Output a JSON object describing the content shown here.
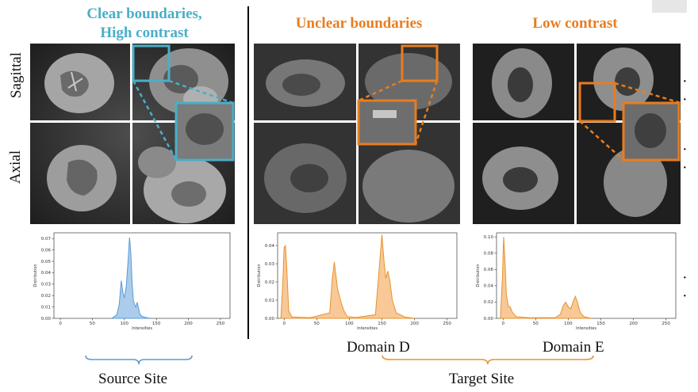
{
  "header": {
    "source_title": "Clear boundaries,\nHigh contrast",
    "unclear_title": "Unclear boundaries",
    "lowcontrast_title": "Low contrast"
  },
  "row_labels": {
    "top": "Sagittal",
    "bottom": "Axial"
  },
  "colors": {
    "teal": "#4aaec8",
    "orange": "#e87d1e",
    "blue_fill": "#9cc3e6",
    "blue_line": "#5b9bd5",
    "orange_fill": "#f7be84",
    "orange_line": "#e8922e"
  },
  "domain_labels": {
    "d": "Domain D",
    "e": "Domain E"
  },
  "site_labels": {
    "source": "Source Site",
    "target": "Target Site"
  },
  "ellipsis": "· ·",
  "chart_data": [
    {
      "type": "area",
      "ylabel": "Distribution",
      "xlabel": "Intensities",
      "xlim": [
        -10,
        265
      ],
      "ylim": [
        0,
        0.075
      ],
      "xticks": [
        0,
        50,
        100,
        150,
        200,
        250
      ],
      "yticks": [
        0.0,
        0.01,
        0.02,
        0.03,
        0.04,
        0.05,
        0.06,
        0.07
      ],
      "ytick_labels": [
        "0.00",
        "0.01",
        "0.02",
        "0.03",
        "0.04",
        "0.05",
        "0.06",
        "0.07"
      ],
      "x": [
        80,
        88,
        92,
        95,
        98,
        100,
        103,
        106,
        108,
        110,
        112,
        114,
        116,
        118,
        120,
        122,
        124,
        127,
        132,
        140
      ],
      "values": [
        0.0,
        0.003,
        0.012,
        0.033,
        0.022,
        0.018,
        0.028,
        0.052,
        0.071,
        0.058,
        0.032,
        0.016,
        0.012,
        0.01,
        0.014,
        0.009,
        0.004,
        0.002,
        0.001,
        0.0
      ]
    },
    {
      "type": "area",
      "ylabel": "Distribution",
      "xlabel": "Intensities",
      "xlim": [
        -10,
        265
      ],
      "ylim": [
        0,
        0.047
      ],
      "xticks": [
        0,
        50,
        100,
        150,
        200,
        250
      ],
      "yticks": [
        0.0,
        0.01,
        0.02,
        0.03,
        0.04
      ],
      "ytick_labels": [
        "0.00",
        "0.01",
        "0.02",
        "0.03",
        "0.04"
      ],
      "x": [
        -5,
        -2,
        0,
        2,
        4,
        7,
        12,
        40,
        70,
        74,
        77,
        79,
        82,
        85,
        88,
        92,
        97,
        110,
        140,
        146,
        150,
        153,
        156,
        159,
        162,
        166,
        172,
        185,
        200
      ],
      "values": [
        0.0,
        0.02,
        0.039,
        0.04,
        0.028,
        0.004,
        0.0008,
        0.0004,
        0.003,
        0.022,
        0.031,
        0.025,
        0.016,
        0.012,
        0.008,
        0.004,
        0.001,
        0.0005,
        0.002,
        0.028,
        0.046,
        0.032,
        0.022,
        0.026,
        0.021,
        0.01,
        0.003,
        0.0008,
        0.0
      ]
    },
    {
      "type": "area",
      "ylabel": "Distribution",
      "xlabel": "Intensities",
      "xlim": [
        -10,
        265
      ],
      "ylim": [
        0,
        0.105
      ],
      "xticks": [
        0,
        50,
        100,
        150,
        200,
        250
      ],
      "yticks": [
        0.0,
        0.02,
        0.04,
        0.06,
        0.08,
        0.1
      ],
      "ytick_labels": [
        "0.00",
        "0.02",
        "0.04",
        "0.06",
        "0.08",
        "0.10"
      ],
      "x": [
        -4,
        -1,
        1,
        3,
        5,
        8,
        11,
        14,
        20,
        40,
        80,
        88,
        92,
        96,
        100,
        104,
        108,
        111,
        114,
        118,
        124,
        135
      ],
      "values": [
        0.0,
        0.05,
        0.1,
        0.07,
        0.03,
        0.015,
        0.014,
        0.008,
        0.002,
        0.0008,
        0.001,
        0.005,
        0.015,
        0.02,
        0.014,
        0.012,
        0.022,
        0.027,
        0.02,
        0.008,
        0.002,
        0.0
      ]
    }
  ]
}
